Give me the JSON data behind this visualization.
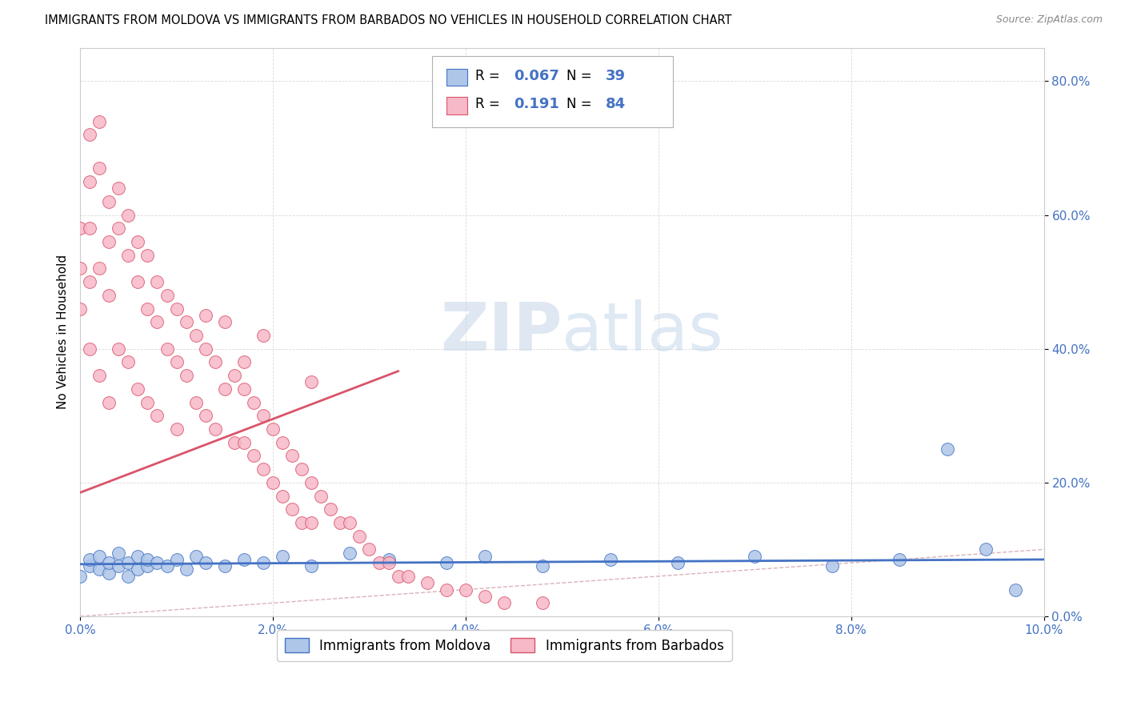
{
  "title": "IMMIGRANTS FROM MOLDOVA VS IMMIGRANTS FROM BARBADOS NO VEHICLES IN HOUSEHOLD CORRELATION CHART",
  "source": "Source: ZipAtlas.com",
  "ylabel": "No Vehicles in Household",
  "xlim": [
    0.0,
    0.1
  ],
  "ylim": [
    0.0,
    0.85
  ],
  "xticks": [
    0.0,
    0.02,
    0.04,
    0.06,
    0.08,
    0.1
  ],
  "xticklabels": [
    "0.0%",
    "2.0%",
    "4.0%",
    "6.0%",
    "8.0%",
    "10.0%"
  ],
  "yticks": [
    0.0,
    0.2,
    0.4,
    0.6,
    0.8
  ],
  "yticklabels": [
    "0.0%",
    "20.0%",
    "40.0%",
    "60.0%",
    "80.0%"
  ],
  "moldova_color": "#aec6e8",
  "moldova_edge_color": "#4472c4",
  "barbados_color": "#f7b8c8",
  "barbados_edge_color": "#d9546a",
  "moldova_line_color": "#4472c4",
  "barbados_line_color": "#d9546a",
  "diagonal_color": "#d0a0a8",
  "R_moldova": 0.067,
  "N_moldova": 39,
  "R_barbados": 0.191,
  "N_barbados": 84,
  "legend_label_moldova": "Immigrants from Moldova",
  "legend_label_barbados": "Immigrants from Barbados",
  "moldova_x": [
    0.0,
    0.001,
    0.001,
    0.002,
    0.002,
    0.003,
    0.003,
    0.004,
    0.004,
    0.005,
    0.005,
    0.006,
    0.006,
    0.007,
    0.007,
    0.008,
    0.009,
    0.01,
    0.011,
    0.012,
    0.013,
    0.015,
    0.017,
    0.019,
    0.021,
    0.024,
    0.028,
    0.032,
    0.038,
    0.042,
    0.048,
    0.055,
    0.062,
    0.07,
    0.078,
    0.085,
    0.09,
    0.094,
    0.097
  ],
  "moldova_y": [
    0.06,
    0.075,
    0.085,
    0.07,
    0.09,
    0.065,
    0.08,
    0.075,
    0.095,
    0.06,
    0.08,
    0.07,
    0.09,
    0.075,
    0.085,
    0.08,
    0.075,
    0.085,
    0.07,
    0.09,
    0.08,
    0.075,
    0.085,
    0.08,
    0.09,
    0.075,
    0.095,
    0.085,
    0.08,
    0.09,
    0.075,
    0.085,
    0.08,
    0.09,
    0.075,
    0.085,
    0.25,
    0.1,
    0.04
  ],
  "barbados_x": [
    0.0,
    0.0,
    0.0,
    0.001,
    0.001,
    0.001,
    0.001,
    0.001,
    0.002,
    0.002,
    0.002,
    0.002,
    0.003,
    0.003,
    0.003,
    0.003,
    0.004,
    0.004,
    0.004,
    0.005,
    0.005,
    0.005,
    0.006,
    0.006,
    0.006,
    0.007,
    0.007,
    0.007,
    0.008,
    0.008,
    0.008,
    0.009,
    0.009,
    0.01,
    0.01,
    0.01,
    0.011,
    0.011,
    0.012,
    0.012,
    0.013,
    0.013,
    0.014,
    0.014,
    0.015,
    0.015,
    0.016,
    0.016,
    0.017,
    0.017,
    0.018,
    0.018,
    0.019,
    0.019,
    0.02,
    0.02,
    0.021,
    0.021,
    0.022,
    0.022,
    0.023,
    0.023,
    0.024,
    0.024,
    0.025,
    0.026,
    0.027,
    0.028,
    0.029,
    0.03,
    0.031,
    0.032,
    0.033,
    0.034,
    0.036,
    0.038,
    0.04,
    0.042,
    0.044,
    0.048,
    0.013,
    0.017,
    0.019,
    0.024
  ],
  "barbados_y": [
    0.58,
    0.52,
    0.46,
    0.72,
    0.65,
    0.58,
    0.5,
    0.4,
    0.74,
    0.67,
    0.52,
    0.36,
    0.62,
    0.56,
    0.48,
    0.32,
    0.64,
    0.58,
    0.4,
    0.6,
    0.54,
    0.38,
    0.56,
    0.5,
    0.34,
    0.54,
    0.46,
    0.32,
    0.5,
    0.44,
    0.3,
    0.48,
    0.4,
    0.46,
    0.38,
    0.28,
    0.44,
    0.36,
    0.42,
    0.32,
    0.4,
    0.3,
    0.38,
    0.28,
    0.44,
    0.34,
    0.36,
    0.26,
    0.34,
    0.26,
    0.32,
    0.24,
    0.3,
    0.22,
    0.28,
    0.2,
    0.26,
    0.18,
    0.24,
    0.16,
    0.22,
    0.14,
    0.2,
    0.14,
    0.18,
    0.16,
    0.14,
    0.14,
    0.12,
    0.1,
    0.08,
    0.08,
    0.06,
    0.06,
    0.05,
    0.04,
    0.04,
    0.03,
    0.02,
    0.02,
    0.45,
    0.38,
    0.42,
    0.35
  ]
}
